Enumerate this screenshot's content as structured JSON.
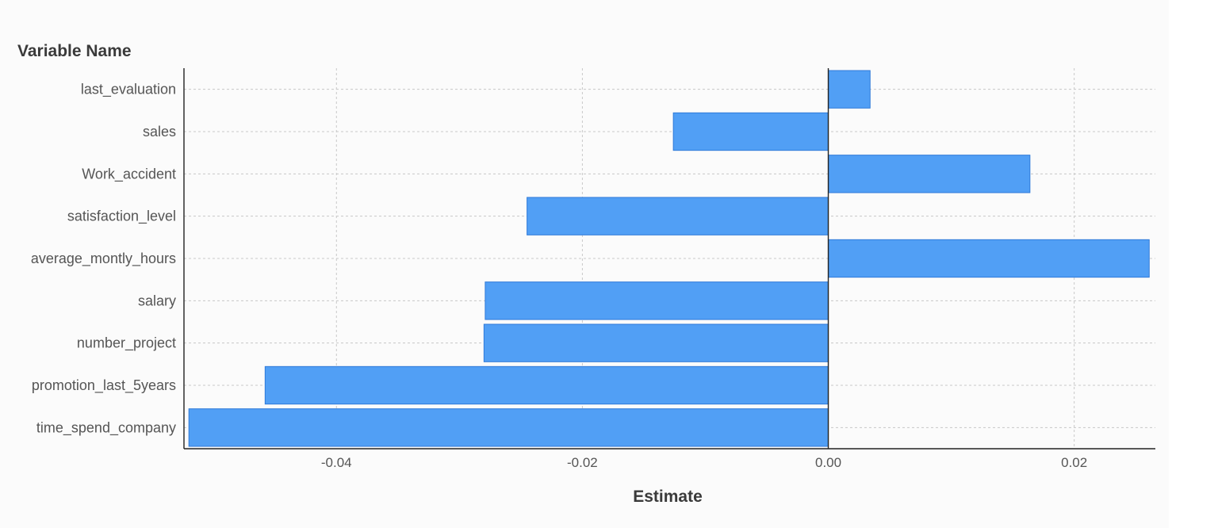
{
  "chart_data": {
    "type": "bar",
    "orientation": "horizontal",
    "ylabel": "Variable Name",
    "xlabel": "Estimate",
    "categories": [
      "last_evaluation",
      "sales",
      "Work_accident",
      "satisfaction_level",
      "average_montly_hours",
      "salary",
      "number_project",
      "promotion_last_5years",
      "time_spend_company"
    ],
    "values": [
      0.0034,
      -0.0126,
      0.0164,
      -0.0245,
      0.0261,
      -0.0279,
      -0.028,
      -0.0458,
      -0.052
    ],
    "xlim": [
      -0.0524,
      0.0266
    ],
    "xticks": [
      -0.04,
      -0.02,
      0.0,
      0.02
    ],
    "xtick_labels": [
      "-0.04",
      "-0.02",
      "0.00",
      "0.02"
    ],
    "grid": true,
    "bar_color": "#519ff5"
  }
}
